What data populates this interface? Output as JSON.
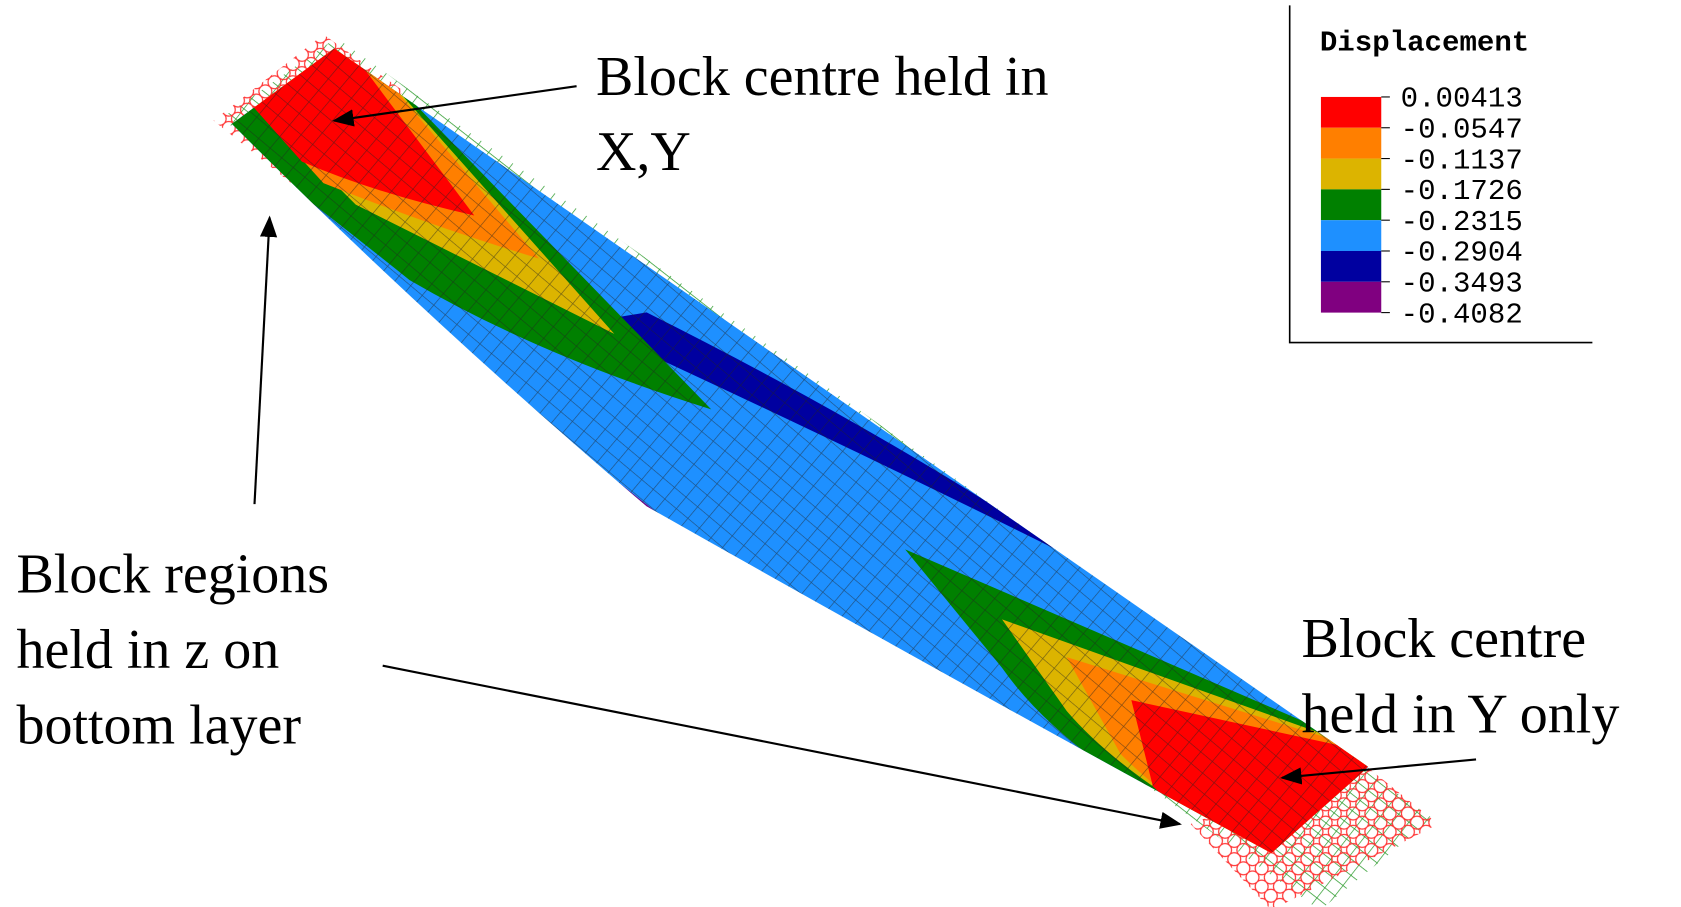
{
  "legend": {
    "title": "Displacement",
    "labels": [
      "0.00413",
      "-0.0547",
      "-0.1137",
      "-0.1726",
      "-0.2315",
      "-0.2904",
      "-0.3493",
      "-0.4082"
    ],
    "colors": [
      "#ff0000",
      "#ff7f00",
      "#dcb400",
      "#008000",
      "#1e90ff",
      "#0000a0",
      "#800080"
    ]
  },
  "annotations": {
    "top_left": [
      "Block centre held in",
      "X,Y"
    ],
    "left": [
      "Block regions",
      "held in z on",
      "bottom layer"
    ],
    "right": [
      "Block centre",
      "held in Y only"
    ]
  }
}
